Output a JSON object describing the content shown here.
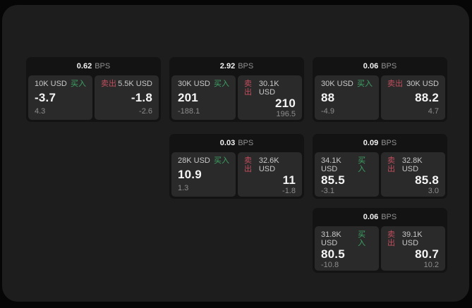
{
  "page": {
    "background": "#060606",
    "panel_background": "#1d1d1d"
  },
  "colors": {
    "card_background": "#131313",
    "tile_background": "#2a2a2a",
    "text_primary": "#f5f5f5",
    "text_amount": "#c9c9c9",
    "text_muted": "#8d8d8d",
    "buy_green": "#3da364",
    "sell_red": "#c04e5d"
  },
  "labels": {
    "bps": "BPS",
    "buy": "买入",
    "sell": "卖出"
  },
  "cards": [
    {
      "bps": "0.62",
      "buy": {
        "amount": "10K USD",
        "value": "-3.7",
        "delta": "4.3"
      },
      "sell": {
        "amount": "5.5K USD",
        "value": "-1.8",
        "delta": "-2.6"
      }
    },
    {
      "bps": "2.92",
      "buy": {
        "amount": "30K USD",
        "value": "201",
        "delta": "-188.1"
      },
      "sell": {
        "amount": "30.1K USD",
        "value": "210",
        "delta": "196.5"
      }
    },
    {
      "bps": "0.06",
      "buy": {
        "amount": "30K USD",
        "value": "88",
        "delta": "-4.9"
      },
      "sell": {
        "amount": "30K USD",
        "value": "88.2",
        "delta": "4.7"
      }
    },
    {
      "bps": "0.03",
      "buy": {
        "amount": "28K USD",
        "value": "10.9",
        "delta": "1.3"
      },
      "sell": {
        "amount": "32.6K USD",
        "value": "11",
        "delta": "-1.8"
      }
    },
    {
      "bps": "0.09",
      "buy": {
        "amount": "34.1K USD",
        "value": "85.5",
        "delta": "-3.1"
      },
      "sell": {
        "amount": "32.8K USD",
        "value": "85.8",
        "delta": "3.0"
      }
    },
    {
      "bps": "0.06",
      "buy": {
        "amount": "31.8K USD",
        "value": "80.5",
        "delta": "-10.8"
      },
      "sell": {
        "amount": "39.1K USD",
        "value": "80.7",
        "delta": "10.2"
      }
    }
  ]
}
